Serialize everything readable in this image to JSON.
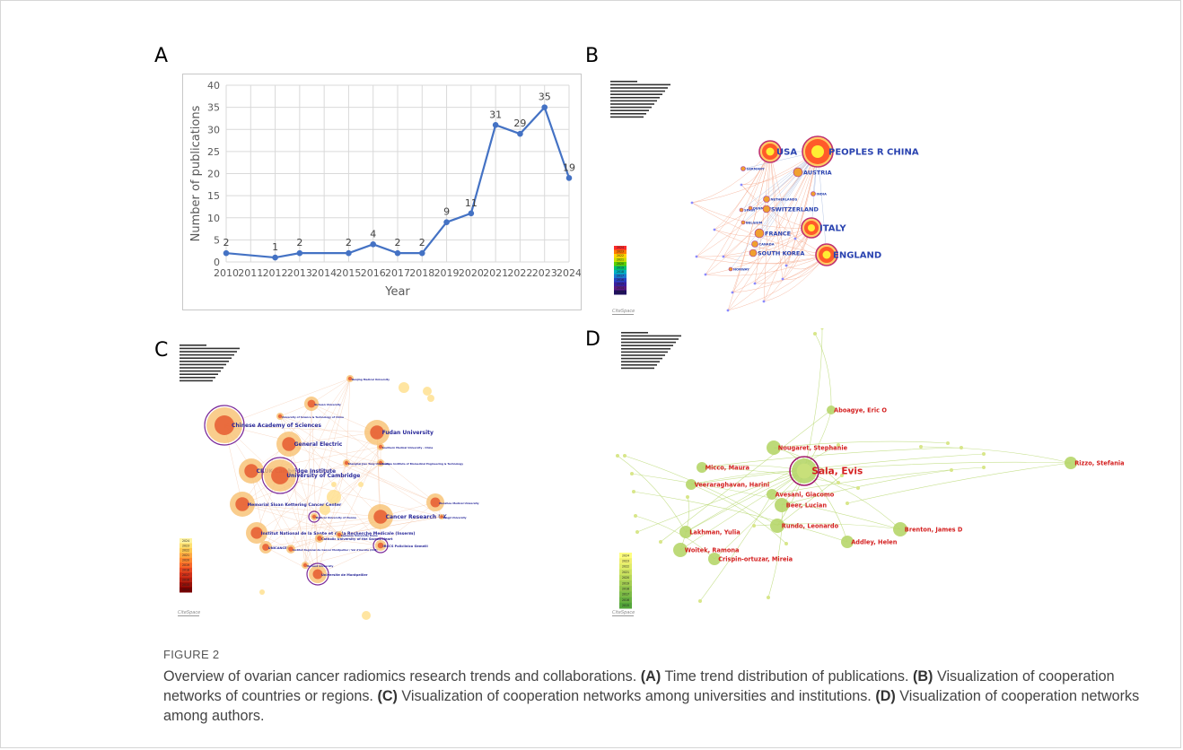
{
  "figure": {
    "label": "FIGURE 2",
    "caption_title": "Overview of ovarian cancer radiomics research trends and collaborations.",
    "caption_parts": [
      {
        "tag": "(A)",
        "text": " Time trend distribution of publications. "
      },
      {
        "tag": "(B)",
        "text": " Visualization of cooperation networks of countries or regions. "
      },
      {
        "tag": "(C)",
        "text": " Visualization of cooperation networks among universities and institutions. "
      },
      {
        "tag": "(D)",
        "text": " Visualization of cooperation networks among authors."
      }
    ]
  },
  "panels": {
    "a_label": "A",
    "b_label": "B",
    "c_label": "C",
    "d_label": "D"
  },
  "chart_data": {
    "type": "line",
    "xlabel": "Year",
    "ylabel": "Number of publications",
    "ylim": [
      0,
      40
    ],
    "yticks": [
      0,
      5,
      10,
      15,
      20,
      25,
      30,
      35,
      40
    ],
    "x_tick_labels": [
      "2010",
      "2011",
      "2012",
      "2013",
      "2014",
      "2015",
      "2016",
      "2017",
      "2018",
      "2019",
      "2020",
      "2021",
      "2022",
      "2023",
      "2024"
    ],
    "x": [
      2010,
      2012,
      2013,
      2015,
      2016,
      2017,
      2018,
      2019,
      2020,
      2021,
      2022,
      2023,
      2024
    ],
    "values": [
      2,
      1,
      2,
      2,
      4,
      2,
      2,
      9,
      11,
      31,
      29,
      35,
      19
    ],
    "grid": true,
    "line_color": "#4472C4"
  },
  "network_b": {
    "labels": [
      {
        "text": "PEOPLES R CHINA",
        "size": "big"
      },
      {
        "text": "USA",
        "size": "big"
      },
      {
        "text": "AUSTRIA",
        "size": "mid"
      },
      {
        "text": "GERMANY",
        "size": "small"
      },
      {
        "text": "NETHERLANDS",
        "size": "small"
      },
      {
        "text": "INDIA",
        "size": "small"
      },
      {
        "text": "SPAIN",
        "size": "small"
      },
      {
        "text": "DENMARK",
        "size": "small"
      },
      {
        "text": "SWITZERLAND",
        "size": "mid"
      },
      {
        "text": "BELGIUM",
        "size": "small"
      },
      {
        "text": "ITALY",
        "size": "big"
      },
      {
        "text": "FRANCE",
        "size": "mid"
      },
      {
        "text": "CANADA",
        "size": "small"
      },
      {
        "text": "SOUTH KOREA",
        "size": "mid"
      },
      {
        "text": "ENGLAND",
        "size": "big"
      },
      {
        "text": "NORWAY",
        "size": "small"
      }
    ],
    "legend_years": [
      "2024",
      "2023",
      "2022",
      "2021",
      "2020",
      "2019",
      "2018",
      "2017",
      "2016",
      "2015",
      "2014",
      "2013"
    ],
    "legend_colors": [
      "#ff2a2a",
      "#ff7a00",
      "#ffd400",
      "#c8e000",
      "#5ad000",
      "#00c070",
      "#00b0c0",
      "#1a78d0",
      "#2a40c0",
      "#3a20a0",
      "#5a1a80",
      "#201060"
    ]
  },
  "network_c": {
    "labels": [
      {
        "text": "Chinese Academy of Sciences",
        "size": "big"
      },
      {
        "text": "Fudan University",
        "size": "big"
      },
      {
        "text": "General Electric",
        "size": "big"
      },
      {
        "text": "CRUK Cambridge Institute",
        "size": "big"
      },
      {
        "text": "University of Cambridge",
        "size": "big"
      },
      {
        "text": "Memorial Sloan Kettering Cancer Center",
        "size": "mid"
      },
      {
        "text": "Cancer Research UK",
        "size": "big"
      },
      {
        "text": "Institut National de la Sante et de la Recherche Medicale (Inserm)",
        "size": "mid"
      },
      {
        "text": "UNICANCER",
        "size": "small"
      },
      {
        "text": "Universite de Montpellier",
        "size": "small"
      },
      {
        "text": "IRCCS Policlinico Gemelli",
        "size": "small"
      },
      {
        "text": "Catholic University of the Sacred Heart",
        "size": "small"
      },
      {
        "text": "Institut Regional du Cancer Montpellier / Val d'Aurelle (ICM)",
        "size": "tiny"
      },
      {
        "text": "Nanjing Medical University",
        "size": "tiny"
      },
      {
        "text": "Sichuan University",
        "size": "tiny"
      },
      {
        "text": "University of Science & Technology of China",
        "size": "tiny"
      },
      {
        "text": "Southern Medical University - China",
        "size": "tiny"
      },
      {
        "text": "Suzhou Institute of Biomedical Engineering & Technology",
        "size": "tiny"
      },
      {
        "text": "Shanghai Jiao Tong University",
        "size": "tiny"
      },
      {
        "text": "Wenzhou Medical University",
        "size": "tiny"
      },
      {
        "text": "Tongji University",
        "size": "tiny"
      },
      {
        "text": "Sapienza University Rome",
        "size": "tiny"
      },
      {
        "text": "Medical University of Vienna",
        "size": "tiny"
      },
      {
        "text": "Harvard University",
        "size": "tiny"
      }
    ],
    "legend_years": [
      "2024",
      "2023",
      "2022",
      "2021",
      "2020",
      "2019",
      "2018",
      "2017",
      "2016",
      "2015",
      "2014"
    ],
    "legend_colors": [
      "#fff3a0",
      "#ffe070",
      "#ffc850",
      "#ffa840",
      "#ff8830",
      "#f86828",
      "#e84820",
      "#d03018",
      "#b82010",
      "#981008",
      "#780000"
    ]
  },
  "network_d": {
    "labels": [
      {
        "text": "Sala, Evis",
        "size": "big"
      },
      {
        "text": "Aboagye, Eric O",
        "size": "mid"
      },
      {
        "text": "Nougaret, Stephanie",
        "size": "mid"
      },
      {
        "text": "Micco, Maura",
        "size": "mid"
      },
      {
        "text": "Rizzo, Stefania",
        "size": "mid"
      },
      {
        "text": "Veeraraghavan, Harini",
        "size": "mid"
      },
      {
        "text": "Avesani, Giacomo",
        "size": "mid"
      },
      {
        "text": "Beer, Lucian",
        "size": "mid"
      },
      {
        "text": "Lakhman, Yulia",
        "size": "mid"
      },
      {
        "text": "Rundo, Leonardo",
        "size": "mid"
      },
      {
        "text": "Brenton, James D",
        "size": "mid"
      },
      {
        "text": "Addley, Helen",
        "size": "mid"
      },
      {
        "text": "Woitek, Ramona",
        "size": "mid"
      },
      {
        "text": "Crispin-ortuzar, Mireia",
        "size": "mid"
      }
    ],
    "legend_years": [
      "2024",
      "2023",
      "2022",
      "2021",
      "2020",
      "2019",
      "2018",
      "2017",
      "2016",
      "2015"
    ],
    "legend_colors": [
      "#ffff80",
      "#f0f070",
      "#e0ec68",
      "#cce260",
      "#b8d858",
      "#a4ce52",
      "#90c44c",
      "#7cba46",
      "#68b040",
      "#54a63a"
    ]
  },
  "software_mark": "CiteSpace"
}
